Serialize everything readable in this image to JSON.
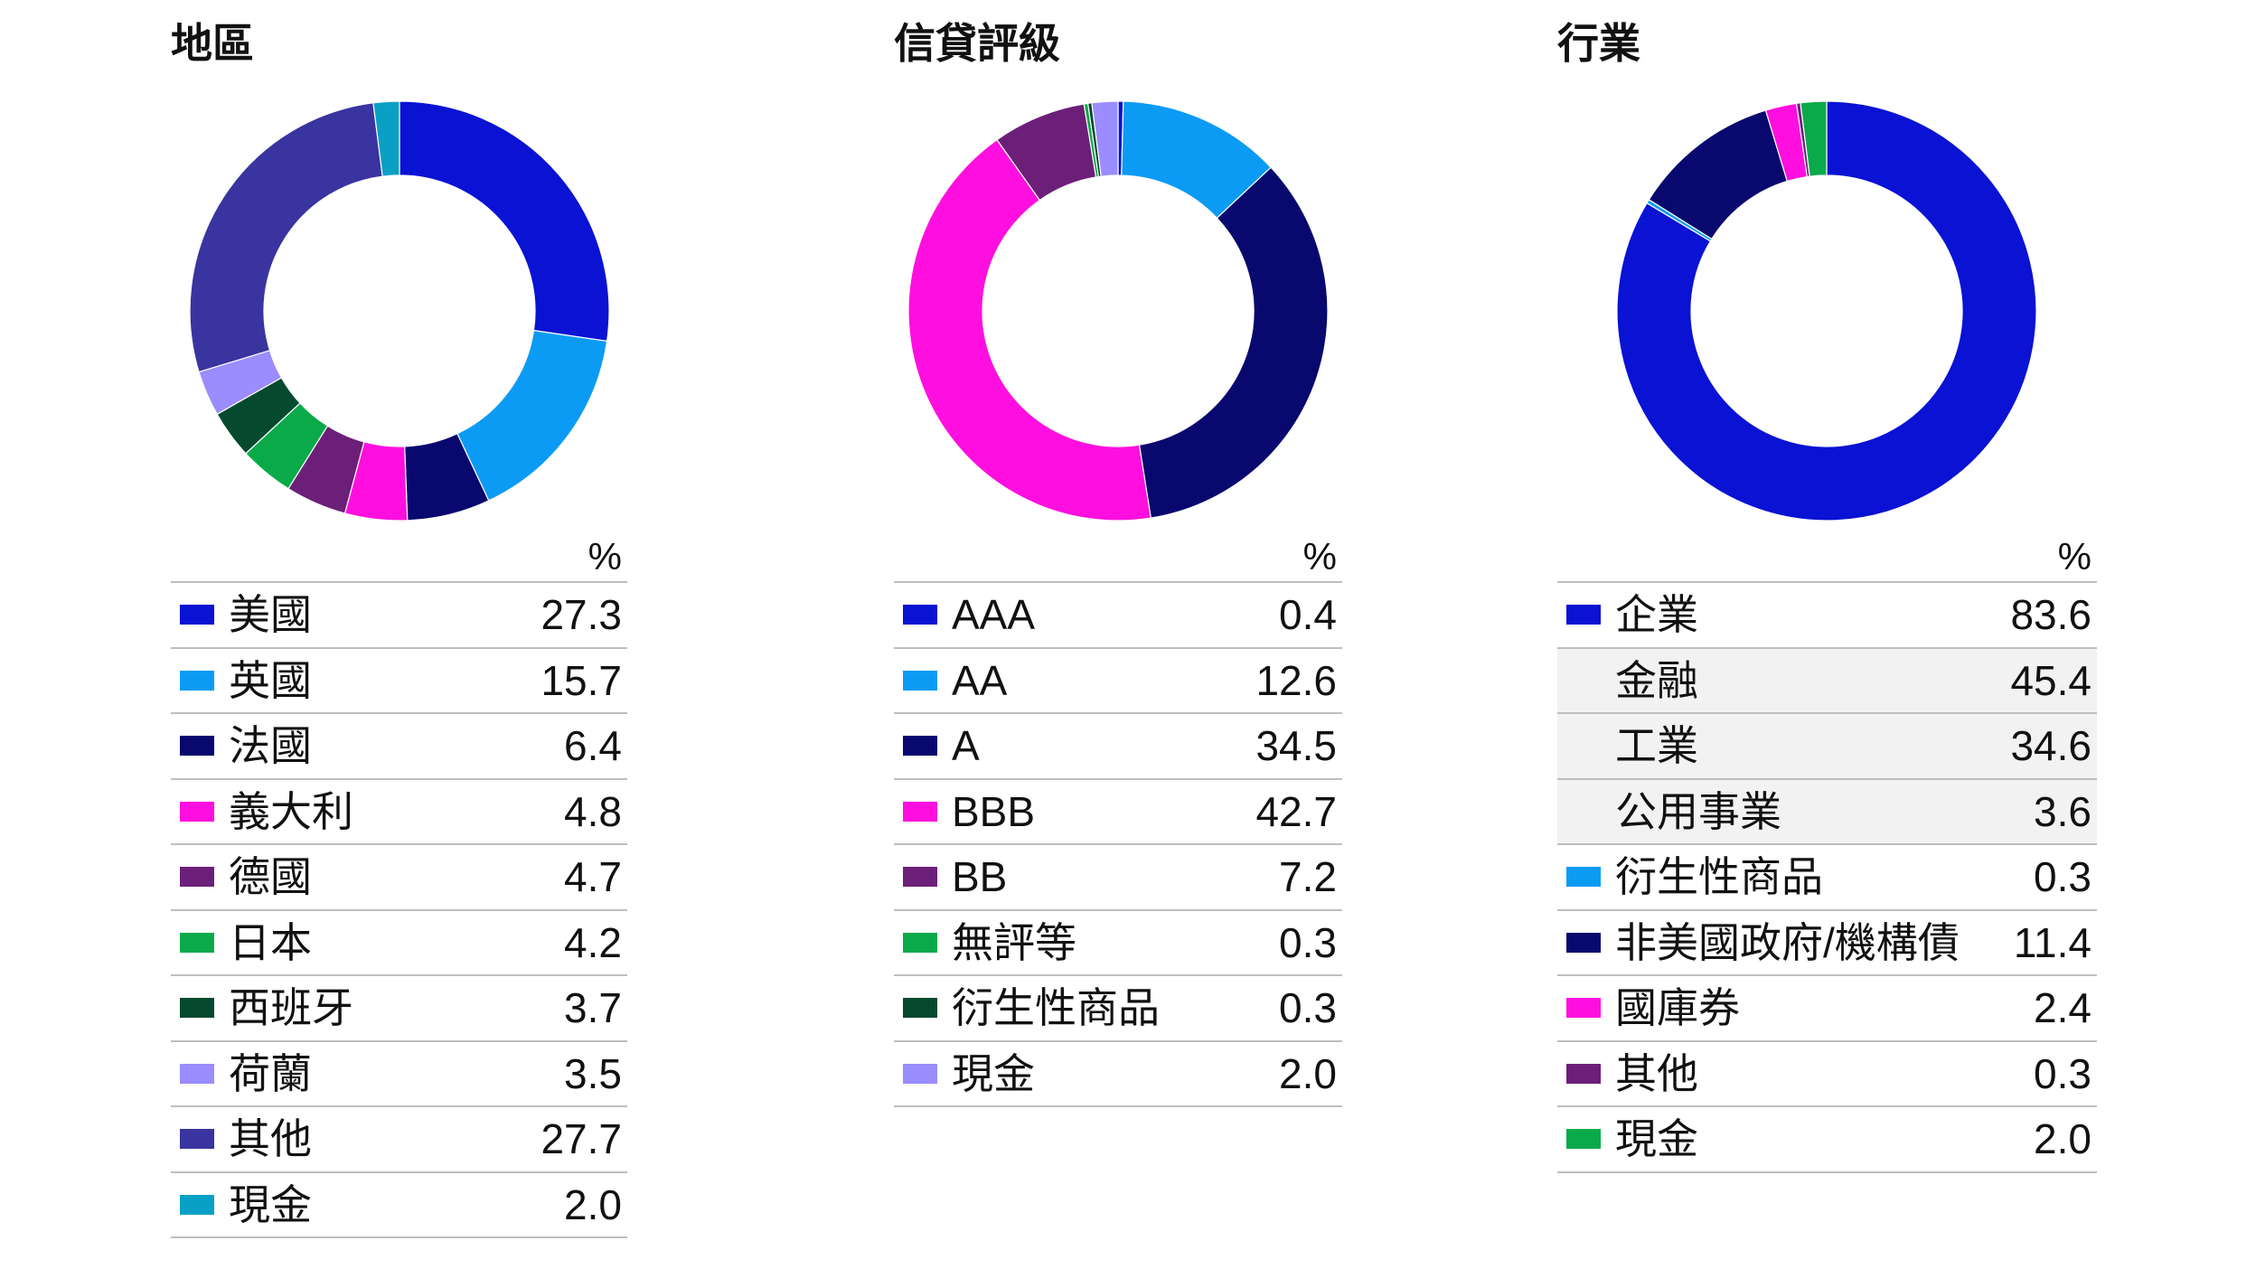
{
  "chart_data": [
    {
      "type": "pie",
      "donut": true,
      "title": "地區",
      "value_header": "%",
      "categories": [
        "美國",
        "英國",
        "法國",
        "義大利",
        "德國",
        "日本",
        "西班牙",
        "荷蘭",
        "其他",
        "現金"
      ],
      "values": [
        27.3,
        15.7,
        6.4,
        4.8,
        4.7,
        4.2,
        3.7,
        3.5,
        27.7,
        2.0
      ],
      "colors": [
        "#0A12D4",
        "#0B9BF5",
        "#08086E",
        "#FF0FDF",
        "#6C1F78",
        "#0AAA4A",
        "#054A2E",
        "#9B8CFF",
        "#3A34A0",
        "#0AA0C6"
      ]
    },
    {
      "type": "pie",
      "donut": true,
      "title": "信貸評級",
      "value_header": "%",
      "categories": [
        "AAA",
        "AA",
        "A",
        "BBB",
        "BB",
        "無評等",
        "衍生性商品",
        "現金"
      ],
      "values": [
        0.4,
        12.6,
        34.5,
        42.7,
        7.2,
        0.3,
        0.3,
        2.0
      ],
      "colors": [
        "#0A12D4",
        "#0B9BF5",
        "#08086E",
        "#FF0FDF",
        "#6C1F78",
        "#0AAA4A",
        "#054A2E",
        "#9B8CFF"
      ]
    },
    {
      "type": "pie",
      "donut": true,
      "title": "行業",
      "value_header": "%",
      "categories": [
        "企業",
        "衍生性商品",
        "非美國政府/機構債",
        "國庫券",
        "其他",
        "現金"
      ],
      "values": [
        83.6,
        0.3,
        11.4,
        2.4,
        0.3,
        2.0
      ],
      "colors": [
        "#0A12D4",
        "#0B9BF5",
        "#08086E",
        "#FF0FDF",
        "#6C1F78",
        "#0AAA4A"
      ],
      "breakdown_of": "企業",
      "breakdown": [
        {
          "label": "金融",
          "value": 45.4
        },
        {
          "label": "工業",
          "value": 34.6
        },
        {
          "label": "公用事業",
          "value": 3.6
        }
      ]
    }
  ]
}
